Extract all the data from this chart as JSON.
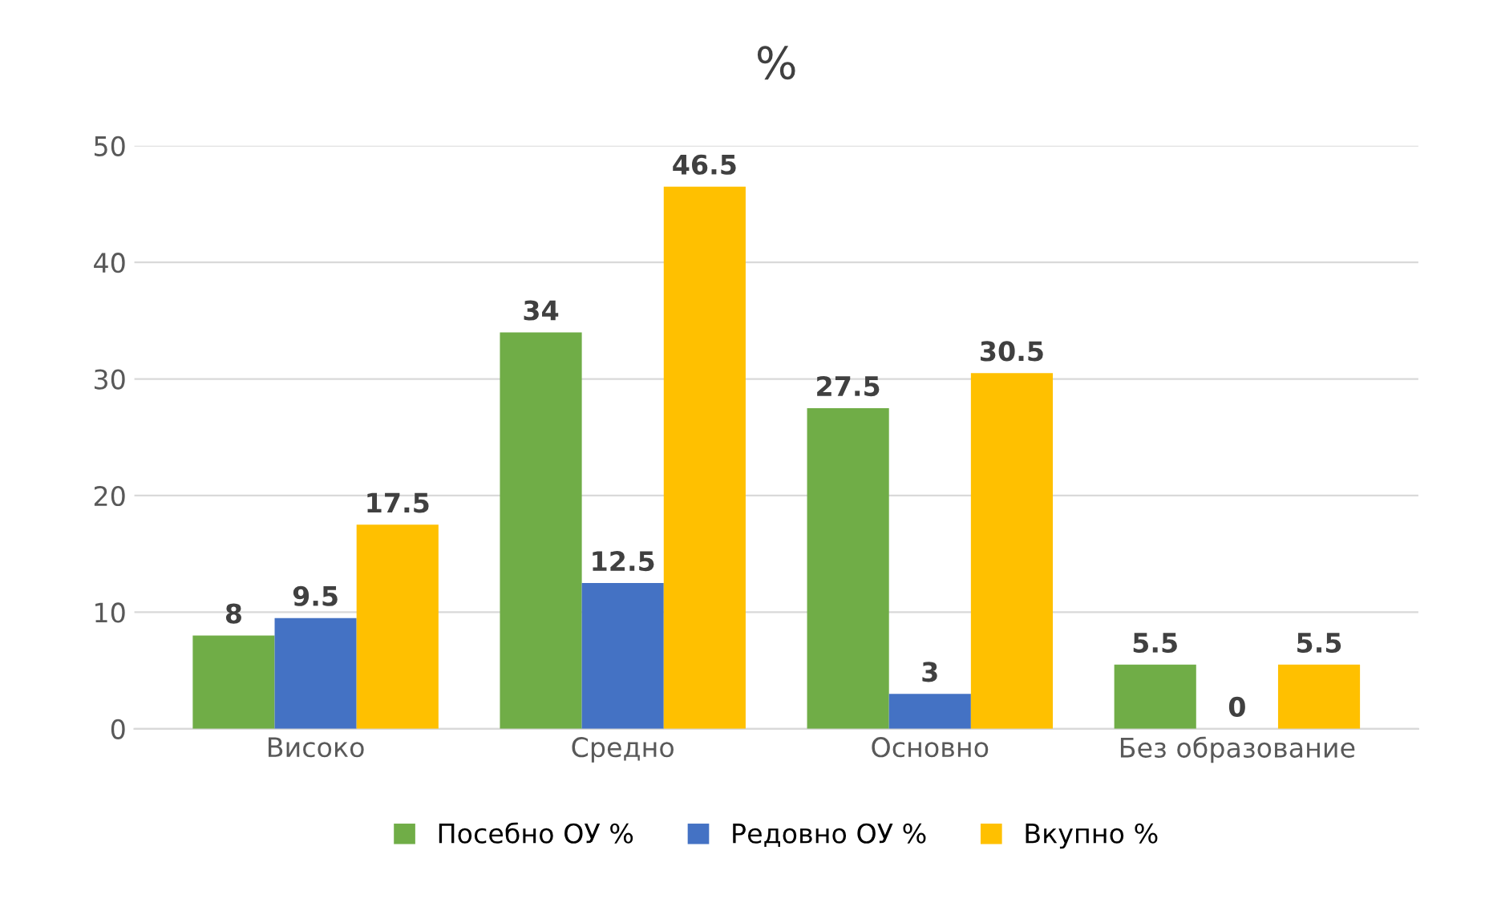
{
  "chart_data": {
    "type": "bar",
    "title": "%",
    "categories": [
      "Високо",
      "Средно",
      "Основно",
      "Без образование"
    ],
    "series": [
      {
        "name": "Посебно ОУ %",
        "color": "#70ad47",
        "values": [
          8,
          34,
          27.5,
          5.5
        ]
      },
      {
        "name": "Редовно ОУ %",
        "color": "#4472c4",
        "values": [
          9.5,
          12.5,
          3,
          0
        ]
      },
      {
        "name": "Вкупно %",
        "color": "#ffc000",
        "values": [
          17.5,
          46.5,
          30.5,
          5.5
        ]
      }
    ],
    "ylim": [
      0,
      50
    ],
    "yticks": [
      0,
      10,
      20,
      30,
      40,
      50
    ],
    "grid": "y",
    "legend": "bottom",
    "data_labels": true
  }
}
